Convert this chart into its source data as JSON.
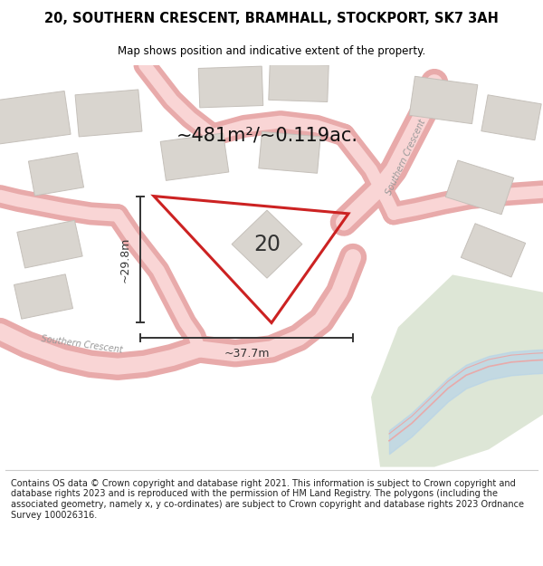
{
  "title": "20, SOUTHERN CRESCENT, BRAMHALL, STOCKPORT, SK7 3AH",
  "subtitle": "Map shows position and indicative extent of the property.",
  "footer": "Contains OS data © Crown copyright and database right 2021. This information is subject to Crown copyright and database rights 2023 and is reproduced with the permission of HM Land Registry. The polygons (including the associated geometry, namely x, y co-ordinates) are subject to Crown copyright and database rights 2023 Ordnance Survey 100026316.",
  "area_label": "~481m²/~0.119ac.",
  "width_label": "~37.7m",
  "height_label": "~29.8m",
  "plot_number": "20",
  "map_bg": "#f5f4f2",
  "road_fill": "#f9d5d5",
  "road_edge": "#e8aaaa",
  "building_color": "#d9d5cf",
  "building_edge": "#c5c0ba",
  "plot_color": "#cc2222",
  "plot_lw": 2.2,
  "green_color": "#ccd9c0",
  "water_color": "#b8d4e8",
  "water_line": "#e8aaaa",
  "dim_color": "#333333",
  "title_fontsize": 10.5,
  "subtitle_fontsize": 8.5,
  "area_fontsize": 15,
  "plotnum_fontsize": 17,
  "dim_fontsize": 9,
  "road_label_fontsize": 7,
  "footer_fontsize": 7.0
}
